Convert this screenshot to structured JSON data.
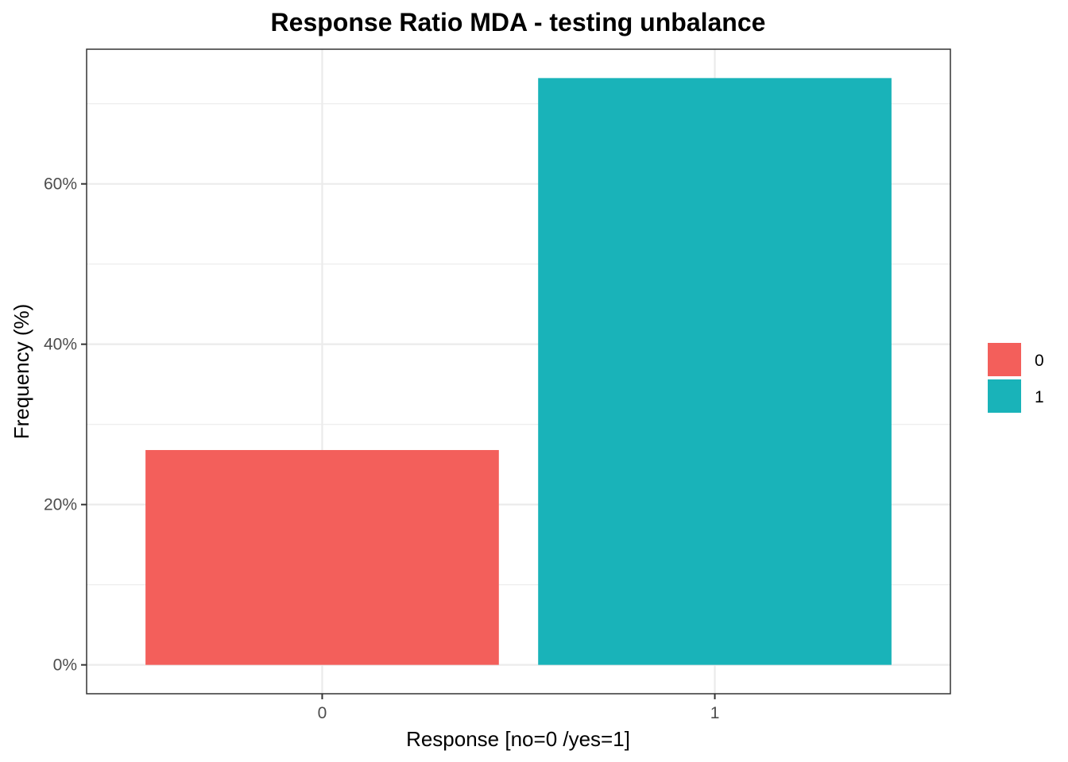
{
  "chart_data": {
    "type": "bar",
    "title": "Response Ratio MDA - testing unbalance",
    "xlabel": "Response [no=0 /yes=1]",
    "ylabel": "Frequency (%)",
    "categories": [
      "0",
      "1"
    ],
    "values": [
      26.8,
      73.2
    ],
    "colors": [
      "#F35F5B",
      "#19B3B9"
    ],
    "ylim": [
      -3.6,
      76.8
    ],
    "yticks": [
      0,
      20,
      40,
      60
    ],
    "ytick_labels": [
      "0%",
      "20%",
      "40%",
      "60%"
    ],
    "yminor": [
      10,
      30,
      50,
      70
    ],
    "grid": true,
    "legend": {
      "position": "right",
      "entries": [
        {
          "label": "0",
          "color": "#F35F5B"
        },
        {
          "label": "1",
          "color": "#19B3B9"
        }
      ]
    }
  }
}
